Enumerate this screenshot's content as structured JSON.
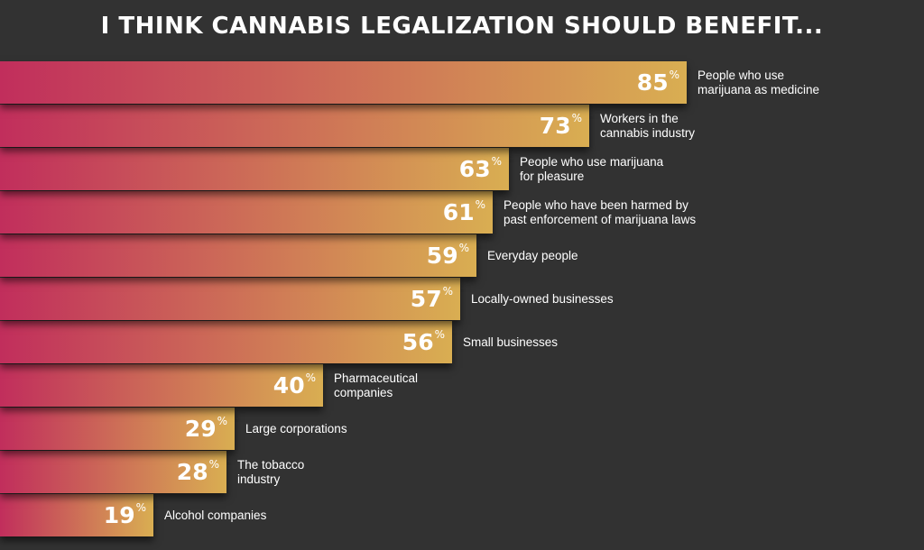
{
  "chart_data": {
    "type": "bar",
    "orientation": "horizontal",
    "title": "I THINK CANNABIS LEGALIZATION SHOULD BENEFIT...",
    "categories": [
      "People who use\nmarijuana as medicine",
      "Workers in the\ncannabis industry",
      "People who use marijuana\nfor pleasure",
      "People who have been harmed by\npast enforcement of marijuana laws",
      "Everyday people",
      "Locally-owned businesses",
      "Small businesses",
      "Pharmaceutical\ncompanies",
      "Large corporations",
      "The tobacco\nindustry",
      "Alcohol companies"
    ],
    "values": [
      85,
      73,
      63,
      61,
      59,
      57,
      56,
      40,
      29,
      28,
      19
    ],
    "unit": "%",
    "xlim": [
      0,
      100
    ],
    "grid": false,
    "colors": {
      "gradient_start": "#c12e5c",
      "gradient_end": "#d9ae52",
      "background": "#323232"
    }
  }
}
